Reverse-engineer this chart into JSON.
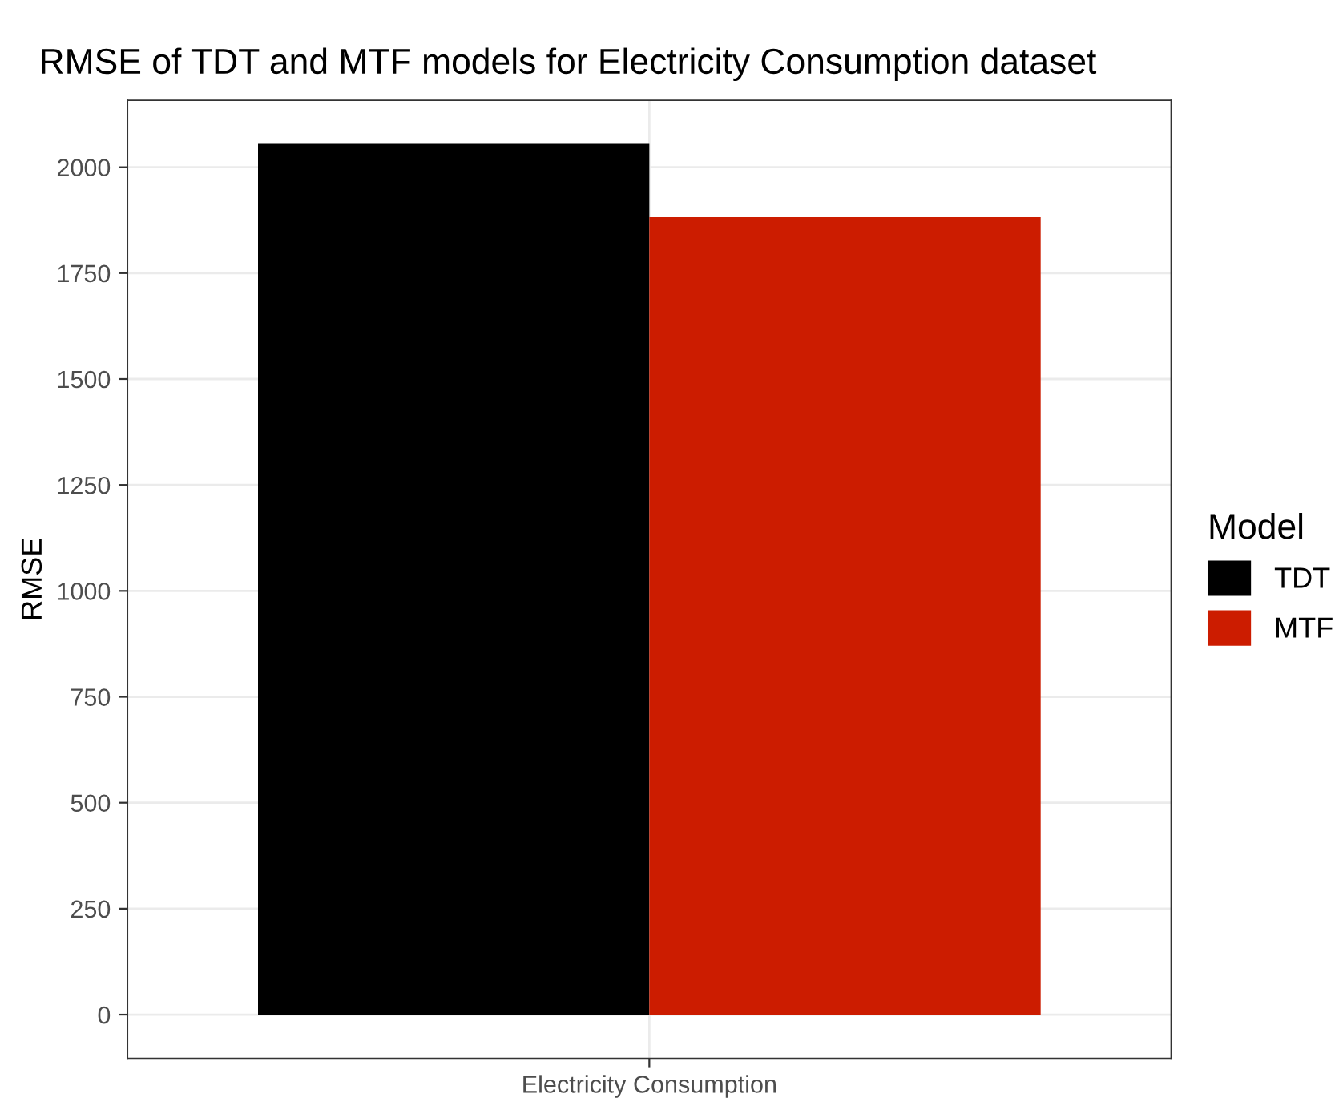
{
  "chart_data": {
    "type": "bar",
    "title": "RMSE of TDT and MTF models for Electricity Consumption dataset",
    "ylabel": "RMSE",
    "legend_title": "Model",
    "categories": [
      "Electricity Consumption"
    ],
    "series": [
      {
        "name": "TDT",
        "color": "#000000",
        "values": [
          2055
        ]
      },
      {
        "name": "MTF",
        "color": "#cc1c00",
        "values": [
          1882
        ]
      }
    ],
    "ylim": [
      -103,
      2158
    ],
    "yticks": [
      0,
      250,
      500,
      750,
      1000,
      1250,
      1500,
      1750,
      2000
    ],
    "grid": true,
    "legend": "right"
  }
}
